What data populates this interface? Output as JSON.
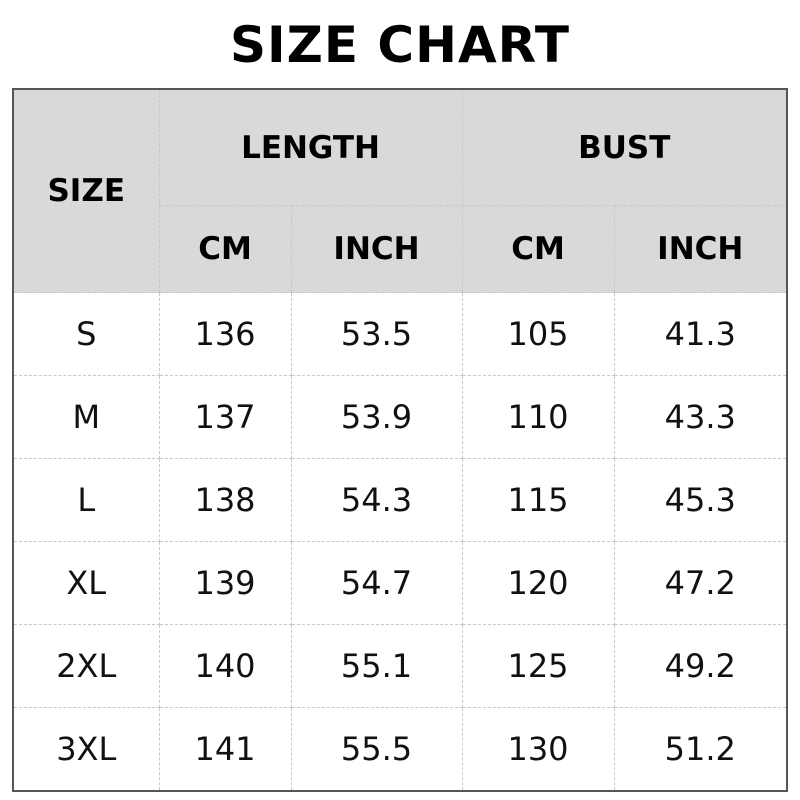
{
  "title": "SIZE CHART",
  "header": {
    "size": "SIZE",
    "length": "LENGTH",
    "bust": "BUST",
    "units": [
      "CM",
      "INCH",
      "CM",
      "INCH"
    ]
  },
  "rows": [
    {
      "size": "S",
      "length_cm": "136",
      "length_inch": "53.5",
      "bust_cm": "105",
      "bust_inch": "41.3"
    },
    {
      "size": "M",
      "length_cm": "137",
      "length_inch": "53.9",
      "bust_cm": "110",
      "bust_inch": "43.3"
    },
    {
      "size": "L",
      "length_cm": "138",
      "length_inch": "54.3",
      "bust_cm": "115",
      "bust_inch": "45.3"
    },
    {
      "size": "XL",
      "length_cm": "139",
      "length_inch": "54.7",
      "bust_cm": "120",
      "bust_inch": "47.2"
    },
    {
      "size": "2XL",
      "length_cm": "140",
      "length_inch": "55.1",
      "bust_cm": "125",
      "bust_inch": "49.2"
    },
    {
      "size": "3XL",
      "length_cm": "141",
      "length_inch": "55.5",
      "bust_cm": "130",
      "bust_inch": "51.2"
    }
  ],
  "colors": {
    "header_bg": "#d9d9d9",
    "border": "#555555"
  }
}
